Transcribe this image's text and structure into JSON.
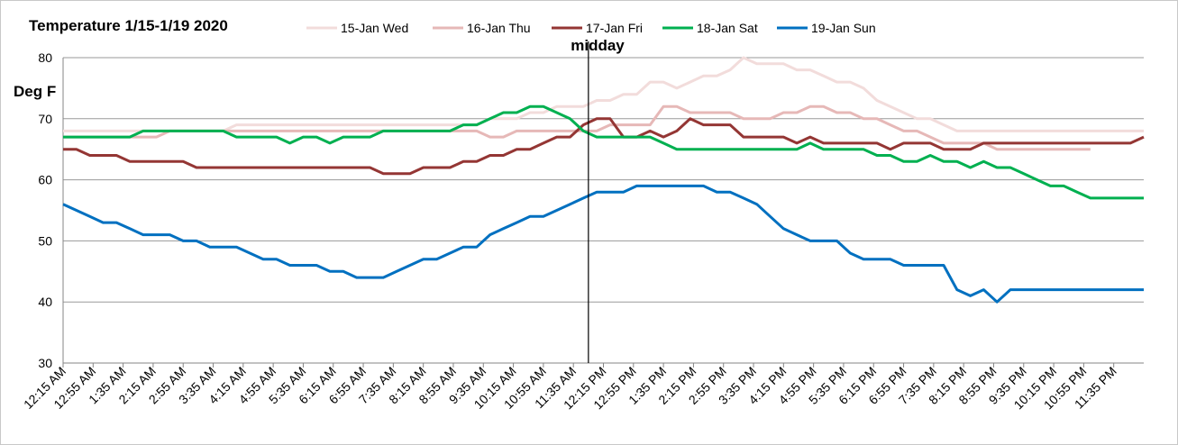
{
  "chart_data": {
    "type": "line",
    "title": "Temperature 1/15-1/19 2020",
    "ylabel": "Deg F",
    "xlabel": "",
    "ylim": [
      30,
      80
    ],
    "yticks": [
      30,
      40,
      50,
      60,
      70,
      80
    ],
    "grid": true,
    "legend_position": "top",
    "annotation": {
      "label": "midday",
      "x": "12:00 PM"
    },
    "x_tick_labels": [
      "12:15 AM",
      "12:55 AM",
      "1:35 AM",
      "2:15 AM",
      "2:55 AM",
      "3:35 AM",
      "4:15 AM",
      "4:55 AM",
      "5:35 AM",
      "6:15 AM",
      "6:55 AM",
      "7:35 AM",
      "8:15 AM",
      "8:55 AM",
      "9:35 AM",
      "10:15 AM",
      "10:55 AM",
      "11:35 AM",
      "12:15 PM",
      "12:55 PM",
      "1:35 PM",
      "2:15 PM",
      "2:55 PM",
      "3:35 PM",
      "4:15 PM",
      "4:55 PM",
      "5:35 PM",
      "6:15 PM",
      "6:55 PM",
      "7:35 PM",
      "8:15 PM",
      "8:55 PM",
      "9:35 PM",
      "10:15 PM",
      "10:55 PM",
      "11:35 PM"
    ],
    "series": [
      {
        "name": "15-Jan Wed",
        "color": "#f2dcdb",
        "values": [
          68,
          68,
          68,
          68,
          68,
          68,
          68,
          68,
          68,
          68,
          68,
          68,
          68,
          69,
          69,
          69,
          69,
          69,
          69,
          69,
          69,
          69,
          69,
          69,
          69,
          69,
          69,
          69,
          69,
          69,
          69,
          69,
          70,
          70,
          70,
          71,
          71,
          72,
          72,
          72,
          73,
          73,
          74,
          74,
          76,
          76,
          75,
          76,
          77,
          77,
          78,
          80,
          79,
          79,
          79,
          78,
          78,
          77,
          76,
          76,
          75,
          73,
          72,
          71,
          70,
          70,
          69,
          68,
          68,
          68,
          68,
          68,
          68,
          68,
          68,
          68,
          68,
          68,
          68,
          68,
          68,
          68
        ]
      },
      {
        "name": "16-Jan Thu",
        "color": "#e6b8b7",
        "values": [
          67,
          67,
          67,
          67,
          67,
          67,
          67,
          67,
          68,
          68,
          68,
          68,
          68,
          68,
          68,
          68,
          68,
          68,
          68,
          68,
          68,
          68,
          68,
          68,
          68,
          68,
          68,
          68,
          68,
          68,
          68,
          68,
          67,
          67,
          68,
          68,
          68,
          68,
          68,
          68,
          68,
          69,
          69,
          69,
          69,
          72,
          72,
          71,
          71,
          71,
          71,
          70,
          70,
          70,
          71,
          71,
          72,
          72,
          71,
          71,
          70,
          70,
          69,
          68,
          68,
          67,
          66,
          66,
          66,
          66,
          65,
          65,
          65,
          65,
          65,
          65,
          65,
          65,
          null,
          null,
          null,
          null
        ]
      },
      {
        "name": "17-Jan Fri",
        "color": "#943634",
        "values": [
          65,
          65,
          64,
          64,
          64,
          63,
          63,
          63,
          63,
          63,
          62,
          62,
          62,
          62,
          62,
          62,
          62,
          62,
          62,
          62,
          62,
          62,
          62,
          62,
          61,
          61,
          61,
          62,
          62,
          62,
          63,
          63,
          64,
          64,
          65,
          65,
          66,
          67,
          67,
          69,
          70,
          70,
          67,
          67,
          68,
          67,
          68,
          70,
          69,
          69,
          69,
          67,
          67,
          67,
          67,
          66,
          67,
          66,
          66,
          66,
          66,
          66,
          65,
          66,
          66,
          66,
          65,
          65,
          65,
          66,
          66,
          66,
          66,
          66,
          66,
          66,
          66,
          66,
          66,
          66,
          66,
          67
        ]
      },
      {
        "name": "18-Jan Sat",
        "color": "#00b050",
        "values": [
          67,
          67,
          67,
          67,
          67,
          67,
          68,
          68,
          68,
          68,
          68,
          68,
          68,
          67,
          67,
          67,
          67,
          66,
          67,
          67,
          66,
          67,
          67,
          67,
          68,
          68,
          68,
          68,
          68,
          68,
          69,
          69,
          70,
          71,
          71,
          72,
          72,
          71,
          70,
          68,
          67,
          67,
          67,
          67,
          67,
          66,
          65,
          65,
          65,
          65,
          65,
          65,
          65,
          65,
          65,
          65,
          66,
          65,
          65,
          65,
          65,
          64,
          64,
          63,
          63,
          64,
          63,
          63,
          62,
          63,
          62,
          62,
          61,
          60,
          59,
          59,
          58,
          57,
          57,
          57,
          57,
          57
        ]
      },
      {
        "name": "19-Jan Sun",
        "color": "#0070c0",
        "values": [
          56,
          55,
          54,
          53,
          53,
          52,
          51,
          51,
          51,
          50,
          50,
          49,
          49,
          49,
          48,
          47,
          47,
          46,
          46,
          46,
          45,
          45,
          44,
          44,
          44,
          45,
          46,
          47,
          47,
          48,
          49,
          49,
          51,
          52,
          53,
          54,
          54,
          55,
          56,
          57,
          58,
          58,
          58,
          59,
          59,
          59,
          59,
          59,
          59,
          58,
          58,
          57,
          56,
          54,
          52,
          51,
          50,
          50,
          50,
          48,
          47,
          47,
          47,
          46,
          46,
          46,
          46,
          42,
          41,
          42,
          40,
          42,
          42,
          42,
          42,
          42,
          42,
          42,
          42,
          42,
          42,
          42
        ]
      }
    ]
  }
}
